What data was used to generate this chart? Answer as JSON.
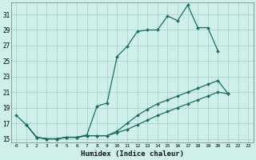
{
  "xlabel": "Humidex (Indice chaleur)",
  "background_color": "#cff0ea",
  "grid_color": "#aad4cc",
  "line_color": "#1a6e60",
  "xlim": [
    -0.5,
    23.5
  ],
  "ylim": [
    14.5,
    32.5
  ],
  "xticks": [
    0,
    1,
    2,
    3,
    4,
    5,
    6,
    7,
    8,
    9,
    10,
    11,
    12,
    13,
    14,
    15,
    16,
    17,
    18,
    19,
    20,
    21,
    22,
    23
  ],
  "yticks": [
    15,
    17,
    19,
    21,
    23,
    25,
    27,
    29,
    31
  ],
  "line1_x": [
    0,
    1,
    2,
    3,
    4,
    5,
    6,
    7,
    8,
    9,
    10,
    11,
    12,
    13,
    14,
    15,
    16,
    17,
    18,
    19,
    20,
    21,
    22,
    23
  ],
  "line1_y": [
    18.0,
    16.8,
    15.2,
    15.0,
    15.0,
    15.2,
    15.2,
    15.5,
    19.2,
    19.6,
    25.6,
    26.9,
    28.8,
    29.0,
    29.0,
    30.8,
    30.2,
    32.2,
    29.3,
    29.3,
    26.3,
    null,
    null,
    null
  ],
  "line2_x": [
    1,
    2,
    3,
    4,
    5,
    6,
    7,
    8,
    9,
    10,
    11,
    12,
    13,
    14,
    15,
    16,
    17,
    18,
    19,
    20,
    21,
    22,
    23
  ],
  "line2_y": [
    16.8,
    15.2,
    15.0,
    15.0,
    15.2,
    15.2,
    15.4,
    15.4,
    15.4,
    16.0,
    17.0,
    18.0,
    18.8,
    19.5,
    20.0,
    20.5,
    21.0,
    21.5,
    22.0,
    22.5,
    20.8,
    null,
    null
  ],
  "line3_x": [
    1,
    2,
    3,
    4,
    5,
    6,
    7,
    8,
    9,
    10,
    11,
    12,
    13,
    14,
    15,
    16,
    17,
    18,
    19,
    20,
    21,
    22,
    23
  ],
  "line3_y": [
    16.8,
    15.2,
    15.0,
    15.0,
    15.2,
    15.2,
    15.4,
    15.4,
    15.4,
    15.8,
    16.2,
    16.8,
    17.4,
    18.0,
    18.5,
    19.0,
    19.5,
    20.0,
    20.5,
    21.0,
    20.8,
    null,
    null
  ]
}
